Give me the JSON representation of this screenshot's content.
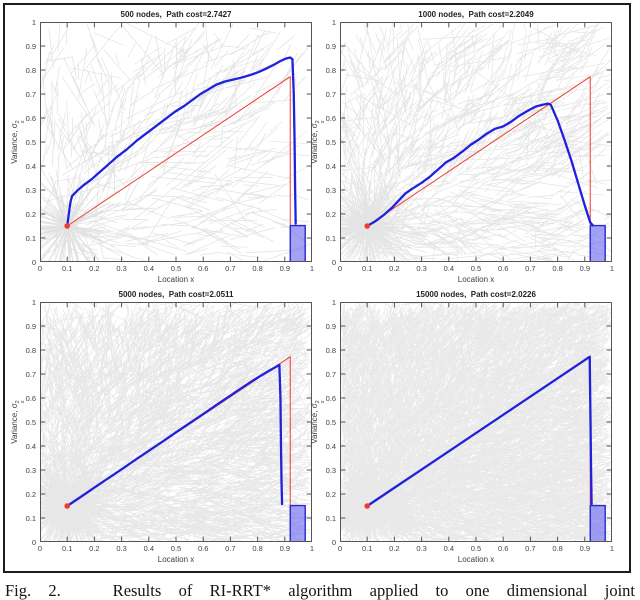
{
  "figure": {
    "caption": "Fig. 2.   Results of RI-RRT* algorithm applied to one dimensional joint"
  },
  "axis": {
    "xlabel": "Location x",
    "ylabel_prefix": "Variance, σ",
    "ylabel_sup": "2",
    "ylabel_sub": "x",
    "xlim": [
      0,
      1
    ],
    "ylim": [
      0,
      1
    ],
    "x_ticks": [
      0,
      0.1,
      0.2,
      0.3,
      0.4,
      0.5,
      0.6,
      0.7,
      0.8,
      0.9,
      1
    ],
    "y_ticks": [
      0,
      0.1,
      0.2,
      0.3,
      0.4,
      0.5,
      0.6,
      0.7,
      0.8,
      0.9,
      1
    ]
  },
  "style": {
    "tree_color": "#c9c9c9",
    "reference_color": "#ee3c30",
    "path_color": "#2020dd",
    "goal_fill": "rgba(100,100,240,0.6)",
    "goal_stroke": "#2828cc",
    "start_color": "#f03c30",
    "axes_color": "#555555"
  },
  "chart_data": [
    {
      "type": "line",
      "title": "500 nodes,  Path cost=2.7427",
      "nodes": 500,
      "path_cost": 2.7427,
      "xlabel": "Location x",
      "ylabel": "Variance, sigma_x^2",
      "xlim": [
        0,
        1
      ],
      "ylim": [
        0,
        1
      ],
      "start": [
        0.1,
        0.15
      ],
      "goal_region": {
        "x": [
          0.92,
          0.975
        ],
        "y": [
          0,
          0.152
        ]
      },
      "reference_line": {
        "points": [
          [
            0.1,
            0.15
          ],
          [
            0.92,
            0.772
          ],
          [
            0.92,
            0.155
          ]
        ]
      },
      "path": {
        "points": [
          [
            0.1,
            0.15
          ],
          [
            0.112,
            0.25
          ],
          [
            0.118,
            0.275
          ],
          [
            0.135,
            0.295
          ],
          [
            0.16,
            0.32
          ],
          [
            0.19,
            0.345
          ],
          [
            0.22,
            0.375
          ],
          [
            0.25,
            0.405
          ],
          [
            0.285,
            0.44
          ],
          [
            0.32,
            0.47
          ],
          [
            0.355,
            0.505
          ],
          [
            0.39,
            0.535
          ],
          [
            0.425,
            0.565
          ],
          [
            0.46,
            0.595
          ],
          [
            0.495,
            0.625
          ],
          [
            0.53,
            0.65
          ],
          [
            0.56,
            0.675
          ],
          [
            0.59,
            0.7
          ],
          [
            0.62,
            0.72
          ],
          [
            0.65,
            0.74
          ],
          [
            0.68,
            0.752
          ],
          [
            0.71,
            0.76
          ],
          [
            0.74,
            0.768
          ],
          [
            0.77,
            0.778
          ],
          [
            0.8,
            0.79
          ],
          [
            0.83,
            0.805
          ],
          [
            0.86,
            0.822
          ],
          [
            0.885,
            0.838
          ],
          [
            0.905,
            0.848
          ],
          [
            0.92,
            0.852
          ],
          [
            0.928,
            0.845
          ],
          [
            0.933,
            0.7
          ],
          [
            0.936,
            0.5
          ],
          [
            0.938,
            0.3
          ],
          [
            0.94,
            0.16
          ]
        ]
      },
      "tree": {
        "seed": 7,
        "edge_count": 480,
        "min_len": 0.05,
        "var_len": 0.2,
        "burst_len": 0.22,
        "alpha": 0.55
      }
    },
    {
      "type": "line",
      "title": "1000 nodes,  Path cost=2.2049",
      "nodes": 1000,
      "path_cost": 2.2049,
      "xlabel": "Location x",
      "ylabel": "Variance, sigma_x^2",
      "xlim": [
        0,
        1
      ],
      "ylim": [
        0,
        1
      ],
      "start": [
        0.1,
        0.15
      ],
      "goal_region": {
        "x": [
          0.92,
          0.975
        ],
        "y": [
          0,
          0.152
        ]
      },
      "reference_line": {
        "points": [
          [
            0.1,
            0.15
          ],
          [
            0.92,
            0.772
          ],
          [
            0.92,
            0.155
          ]
        ]
      },
      "path": {
        "points": [
          [
            0.1,
            0.15
          ],
          [
            0.13,
            0.17
          ],
          [
            0.16,
            0.195
          ],
          [
            0.19,
            0.225
          ],
          [
            0.215,
            0.255
          ],
          [
            0.24,
            0.285
          ],
          [
            0.265,
            0.305
          ],
          [
            0.3,
            0.33
          ],
          [
            0.33,
            0.355
          ],
          [
            0.36,
            0.385
          ],
          [
            0.39,
            0.415
          ],
          [
            0.42,
            0.435
          ],
          [
            0.45,
            0.46
          ],
          [
            0.48,
            0.488
          ],
          [
            0.51,
            0.51
          ],
          [
            0.54,
            0.535
          ],
          [
            0.57,
            0.555
          ],
          [
            0.6,
            0.565
          ],
          [
            0.63,
            0.585
          ],
          [
            0.66,
            0.61
          ],
          [
            0.69,
            0.63
          ],
          [
            0.72,
            0.648
          ],
          [
            0.745,
            0.655
          ],
          [
            0.765,
            0.66
          ],
          [
            0.775,
            0.655
          ],
          [
            0.8,
            0.59
          ],
          [
            0.825,
            0.51
          ],
          [
            0.85,
            0.425
          ],
          [
            0.875,
            0.33
          ],
          [
            0.9,
            0.235
          ],
          [
            0.92,
            0.165
          ],
          [
            0.93,
            0.152
          ]
        ]
      },
      "tree": {
        "seed": 13,
        "edge_count": 980,
        "min_len": 0.05,
        "var_len": 0.18,
        "burst_len": 0.22,
        "alpha": 0.5
      }
    },
    {
      "type": "line",
      "title": "5000 nodes,  Path cost=2.0511",
      "nodes": 5000,
      "path_cost": 2.0511,
      "xlabel": "Location x",
      "ylabel": "Variance, sigma_x^2",
      "xlim": [
        0,
        1
      ],
      "ylim": [
        0,
        1
      ],
      "start": [
        0.1,
        0.15
      ],
      "goal_region": {
        "x": [
          0.92,
          0.975
        ],
        "y": [
          0,
          0.152
        ]
      },
      "reference_line": {
        "points": [
          [
            0.1,
            0.15
          ],
          [
            0.92,
            0.772
          ],
          [
            0.92,
            0.155
          ]
        ]
      },
      "path": {
        "points": [
          [
            0.1,
            0.15
          ],
          [
            0.15,
            0.188
          ],
          [
            0.2,
            0.227
          ],
          [
            0.25,
            0.265
          ],
          [
            0.3,
            0.303
          ],
          [
            0.35,
            0.342
          ],
          [
            0.4,
            0.38
          ],
          [
            0.45,
            0.418
          ],
          [
            0.5,
            0.457
          ],
          [
            0.55,
            0.495
          ],
          [
            0.6,
            0.533
          ],
          [
            0.65,
            0.572
          ],
          [
            0.7,
            0.61
          ],
          [
            0.75,
            0.648
          ],
          [
            0.8,
            0.685
          ],
          [
            0.84,
            0.712
          ],
          [
            0.865,
            0.728
          ],
          [
            0.88,
            0.738
          ],
          [
            0.884,
            0.6
          ],
          [
            0.886,
            0.4
          ],
          [
            0.888,
            0.25
          ],
          [
            0.89,
            0.158
          ]
        ]
      },
      "tree": {
        "seed": 101,
        "edge_count": 4200,
        "min_len": 0.03,
        "var_len": 0.14,
        "burst_len": 0.18,
        "alpha": 0.45
      }
    },
    {
      "type": "line",
      "title": "15000 nodes,  Path cost=2.0226",
      "nodes": 15000,
      "path_cost": 2.0226,
      "xlabel": "Location x",
      "ylabel": "Variance, sigma_x^2",
      "xlim": [
        0,
        1
      ],
      "ylim": [
        0,
        1
      ],
      "start": [
        0.1,
        0.15
      ],
      "goal_region": {
        "x": [
          0.92,
          0.975
        ],
        "y": [
          0,
          0.152
        ]
      },
      "reference_line": {
        "points": [
          [
            0.1,
            0.15
          ],
          [
            0.92,
            0.775
          ],
          [
            0.92,
            0.155
          ]
        ]
      },
      "path": {
        "points": [
          [
            0.1,
            0.15
          ],
          [
            0.2,
            0.226
          ],
          [
            0.3,
            0.302
          ],
          [
            0.4,
            0.378
          ],
          [
            0.5,
            0.454
          ],
          [
            0.6,
            0.53
          ],
          [
            0.7,
            0.606
          ],
          [
            0.8,
            0.682
          ],
          [
            0.9,
            0.758
          ],
          [
            0.918,
            0.772
          ],
          [
            0.921,
            0.5
          ],
          [
            0.923,
            0.3
          ],
          [
            0.925,
            0.158
          ]
        ]
      },
      "tree": {
        "seed": 211,
        "edge_count": 8500,
        "min_len": 0.03,
        "var_len": 0.12,
        "burst_len": 0.16,
        "alpha": 0.4
      }
    }
  ]
}
